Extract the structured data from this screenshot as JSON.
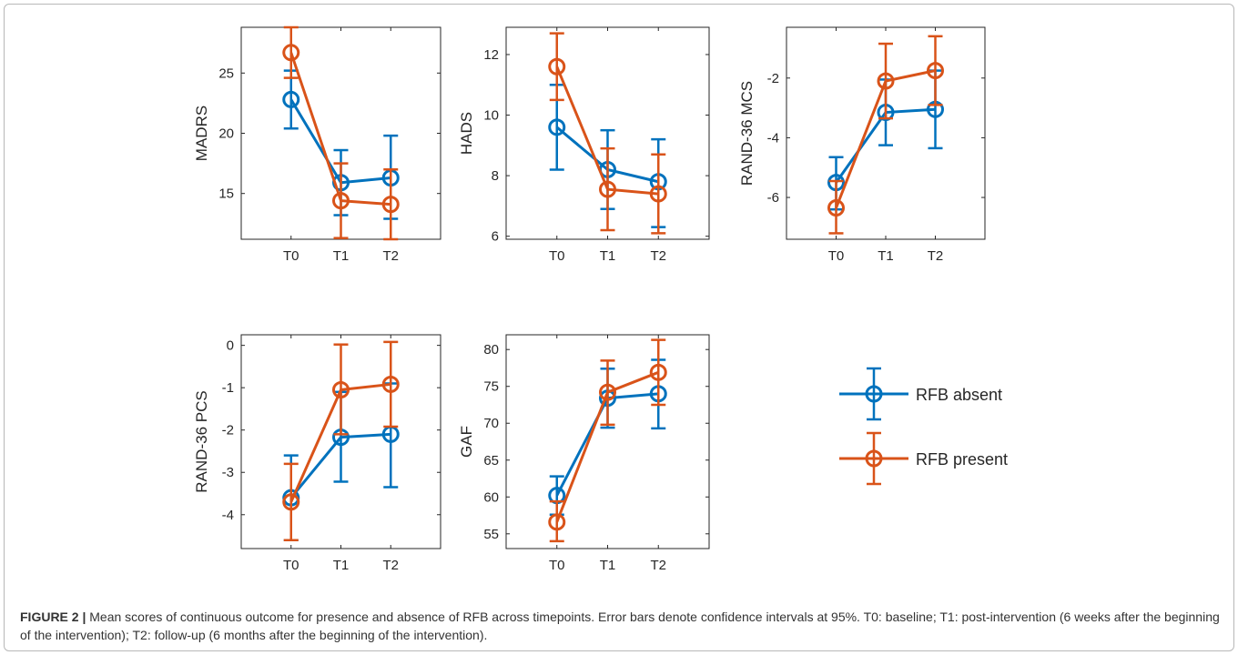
{
  "caption": {
    "label": "FIGURE 2 |",
    "text": " Mean scores of continuous outcome for presence and absence of RFB across timepoints. Error bars denote confidence intervals at 95%. T0: baseline; T1: post-intervention (6 weeks after the beginning of the intervention); T2: follow-up (6 months after the beginning of the intervention)."
  },
  "colors": {
    "absent": "#0072BD",
    "present": "#D95319"
  },
  "legend": {
    "items": [
      "RFB absent",
      "RFB present"
    ],
    "placement": "right of bottom row"
  },
  "chart_data": [
    {
      "type": "line",
      "ylabel": "MADRS",
      "categories": [
        "T0",
        "T1",
        "T2"
      ],
      "ylim": [
        11.2,
        28.8
      ],
      "yticks": [
        15,
        20,
        25
      ],
      "series": [
        {
          "name": "RFB absent",
          "values": [
            22.8,
            15.9,
            16.3
          ],
          "lower": [
            20.4,
            13.2,
            12.9
          ],
          "upper": [
            25.2,
            18.6,
            19.8
          ]
        },
        {
          "name": "RFB present",
          "values": [
            26.7,
            14.4,
            14.1
          ],
          "lower": [
            24.6,
            11.3,
            11.2
          ],
          "upper": [
            28.8,
            17.5,
            17.0
          ]
        }
      ]
    },
    {
      "type": "line",
      "ylabel": "HADS",
      "categories": [
        "T0",
        "T1",
        "T2"
      ],
      "ylim": [
        5.9,
        12.9
      ],
      "yticks": [
        6,
        8,
        10,
        12
      ],
      "series": [
        {
          "name": "RFB absent",
          "values": [
            9.6,
            8.2,
            7.8
          ],
          "lower": [
            8.2,
            6.9,
            6.3
          ],
          "upper": [
            11.0,
            9.5,
            9.2
          ]
        },
        {
          "name": "RFB present",
          "values": [
            11.6,
            7.55,
            7.4
          ],
          "lower": [
            10.5,
            6.2,
            6.1
          ],
          "upper": [
            12.7,
            8.9,
            8.7
          ]
        }
      ]
    },
    {
      "type": "line",
      "ylabel": "RAND-36 MCS",
      "categories": [
        "T0",
        "T1",
        "T2"
      ],
      "ylim": [
        -7.4,
        -0.3
      ],
      "yticks": [
        -6,
        -4,
        -2
      ],
      "series": [
        {
          "name": "RFB absent",
          "values": [
            -5.5,
            -3.15,
            -3.05
          ],
          "lower": [
            -6.4,
            -4.25,
            -4.35
          ],
          "upper": [
            -4.65,
            -2.05,
            -1.75
          ]
        },
        {
          "name": "RFB present",
          "values": [
            -6.35,
            -2.1,
            -1.75
          ],
          "lower": [
            -7.2,
            -3.35,
            -2.9
          ],
          "upper": [
            -5.45,
            -0.85,
            -0.6
          ]
        }
      ]
    },
    {
      "type": "line",
      "ylabel": "RAND-36 PCS",
      "categories": [
        "T0",
        "T1",
        "T2"
      ],
      "ylim": [
        -4.8,
        0.25
      ],
      "yticks": [
        -4,
        -3,
        -2,
        -1,
        0
      ],
      "series": [
        {
          "name": "RFB absent",
          "values": [
            -3.6,
            -2.17,
            -2.1
          ],
          "lower": [
            -4.6,
            -3.22,
            -3.35
          ],
          "upper": [
            -2.6,
            -1.1,
            -0.9
          ]
        },
        {
          "name": "RFB present",
          "values": [
            -3.7,
            -1.05,
            -0.92
          ],
          "lower": [
            -4.6,
            -2.1,
            -1.92
          ],
          "upper": [
            -2.8,
            0.02,
            0.08
          ]
        }
      ]
    },
    {
      "type": "line",
      "ylabel": "GAF",
      "categories": [
        "T0",
        "T1",
        "T2"
      ],
      "ylim": [
        53,
        82
      ],
      "yticks": [
        55,
        60,
        65,
        70,
        75,
        80
      ],
      "series": [
        {
          "name": "RFB absent",
          "values": [
            60.2,
            73.4,
            74.0
          ],
          "lower": [
            57.6,
            69.4,
            69.3
          ],
          "upper": [
            62.8,
            77.4,
            78.6
          ]
        },
        {
          "name": "RFB present",
          "values": [
            56.6,
            74.2,
            76.9
          ],
          "lower": [
            54.0,
            69.8,
            72.5
          ],
          "upper": [
            59.4,
            78.5,
            81.3
          ]
        }
      ]
    }
  ]
}
